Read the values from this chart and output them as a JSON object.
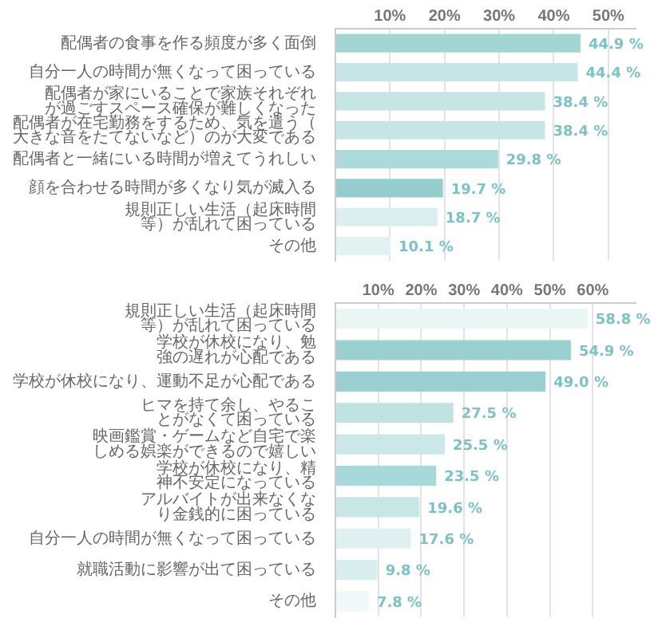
{
  "chart_data": [
    {
      "type": "bar",
      "orientation": "horizontal",
      "grid": "x",
      "categories": [
        "配偶者の食事を作る頻度が多く面倒",
        "自分一人の時間が無くなって困っている",
        "配偶者が家にいることで家族それぞれが過ごすスペース確保が難しくなった",
        "配偶者が在宅勤務をするため、気を遣う（大きな音をたてないなど）のが大変である",
        "配偶者と一緒にいる時間が増えてうれしい",
        "顔を合わせる時間が多くなり気が滅入る",
        "規則正しい生活（起床時間等）が乱れて困っている",
        "その他"
      ],
      "values": [
        44.9,
        44.4,
        38.4,
        38.4,
        29.8,
        19.7,
        18.7,
        10.1
      ],
      "value_labels": [
        "44.9 %",
        "44.4 %",
        "38.4 %",
        "38.4 %",
        "29.8 %",
        "19.7 %",
        "18.7 %",
        "10.1 %"
      ],
      "colors": [
        "#a3d5d5",
        "#c6e6e6",
        "#c6e6e6",
        "#c6e6e6",
        "#acd9d9",
        "#94cdcd",
        "#dbeff0",
        "#e2f2f2"
      ],
      "xlim": [
        0,
        55
      ],
      "xticks": [
        {
          "value": 0,
          "label": null
        },
        {
          "value": 10,
          "label": "10%"
        },
        {
          "value": 20,
          "label": "20%"
        },
        {
          "value": 30,
          "label": "30%"
        },
        {
          "value": 40,
          "label": "40%"
        },
        {
          "value": 50,
          "label": "50%"
        }
      ]
    },
    {
      "type": "bar",
      "orientation": "horizontal",
      "grid": "x",
      "categories": [
        "規則正しい生活（起床時間等）が乱れて困っている",
        "学校が休校になり、勉強の遅れが心配である",
        "学校が休校になり、運動不足が心配である",
        "ヒマを持て余し、やることがなくて困っている",
        "映画鑑賞・ゲームなど自宅で楽しめる娯楽ができるので嬉しい",
        "学校が休校になり、精神不安定になっている",
        "アルバイトが出来なくなり金銭的に困っている",
        "自分一人の時間が無くなって困っている",
        "就職活動に影響が出て困っている",
        "その他"
      ],
      "values": [
        58.8,
        54.9,
        49.0,
        27.5,
        25.5,
        23.5,
        19.6,
        17.6,
        9.8,
        7.8
      ],
      "value_labels": [
        "58.8 %",
        "54.9 %",
        "49.0 %",
        "27.5 %",
        "25.5 %",
        "23.5 %",
        "19.6 %",
        "17.6 %",
        "9.8 %",
        "7.8 %"
      ],
      "colors": [
        "#eaf6f6",
        "#9bd0d0",
        "#9bd0d0",
        "#bfe2e2",
        "#cbe8e8",
        "#a9d8d8",
        "#c8e6e6",
        "#dff0f0",
        "#d9eeee",
        "#f0f8f8"
      ],
      "xlim": [
        0,
        70
      ],
      "xticks": [
        {
          "value": 0,
          "label": null
        },
        {
          "value": 10,
          "label": "10%"
        },
        {
          "value": 20,
          "label": "20%"
        },
        {
          "value": 30,
          "label": "30%"
        },
        {
          "value": 40,
          "label": "40%"
        },
        {
          "value": 50,
          "label": "50%"
        },
        {
          "value": 60,
          "label": "60%"
        }
      ]
    }
  ]
}
